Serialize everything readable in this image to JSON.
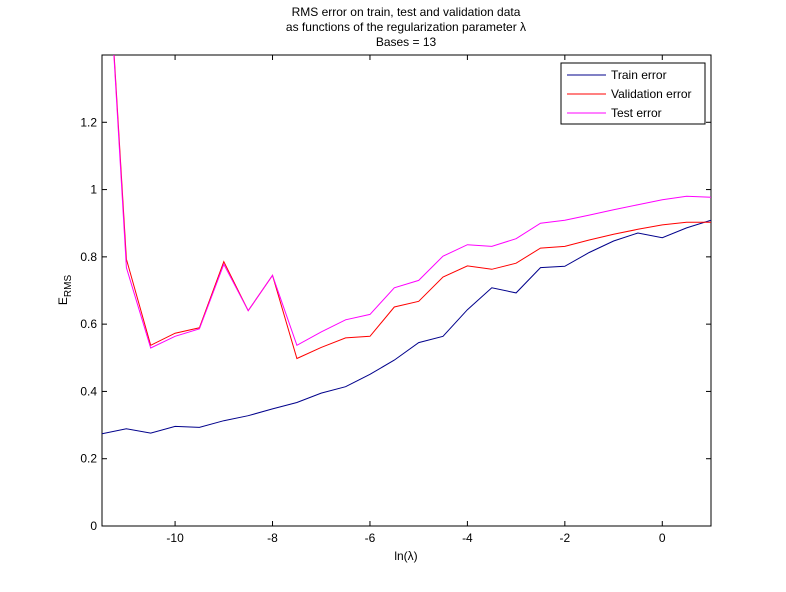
{
  "chart_data": {
    "type": "line",
    "title_lines": [
      "RMS error on train, test and validation data",
      "as functions of the regularization parameter λ",
      "Bases = 13"
    ],
    "xlabel": "ln(λ)",
    "ylabel": "E",
    "ylabel_sub": "RMS",
    "xlim": [
      -11.5,
      1
    ],
    "ylim": [
      0,
      1.4
    ],
    "xticks": [
      -10,
      -8,
      -6,
      -4,
      -2,
      0
    ],
    "yticks": [
      0,
      0.2,
      0.4,
      0.6,
      0.8,
      1,
      1.2
    ],
    "ytick_labels": [
      "0",
      "0.2",
      "0.4",
      "0.6",
      "0.8",
      "1",
      "1.2"
    ],
    "grid": false,
    "legend_position": "top-right",
    "x": [
      -11.5,
      -11,
      -10.5,
      -10,
      -9.5,
      -9,
      -8.5,
      -8,
      -7.5,
      -7,
      -6.5,
      -6,
      -5.5,
      -5,
      -4.5,
      -4,
      -3.5,
      -3,
      -2.5,
      -2,
      -1.5,
      -1,
      -0.5,
      0,
      0.5,
      1
    ],
    "series": [
      {
        "name": "Train error",
        "color": "#00008b",
        "values": [
          0.274,
          0.289,
          0.276,
          0.296,
          0.293,
          0.313,
          0.328,
          0.348,
          0.367,
          0.395,
          0.414,
          0.451,
          0.493,
          0.545,
          0.564,
          0.643,
          0.708,
          0.693,
          0.768,
          0.772,
          0.813,
          0.847,
          0.871,
          0.857,
          0.886,
          0.909
        ]
      },
      {
        "name": "Validation error",
        "color": "#ff0000",
        "values": [
          2.0,
          0.793,
          0.537,
          0.573,
          0.589,
          0.786,
          0.64,
          0.745,
          0.498,
          0.531,
          0.559,
          0.564,
          0.651,
          0.668,
          0.74,
          0.773,
          0.763,
          0.781,
          0.826,
          0.831,
          0.85,
          0.867,
          0.882,
          0.895,
          0.903,
          0.903
        ]
      },
      {
        "name": "Test error",
        "color": "#ff00ff",
        "values": [
          2.0,
          0.768,
          0.529,
          0.564,
          0.586,
          0.778,
          0.64,
          0.745,
          0.537,
          0.577,
          0.613,
          0.629,
          0.708,
          0.73,
          0.802,
          0.836,
          0.831,
          0.854,
          0.9,
          0.909,
          0.924,
          0.94,
          0.955,
          0.97,
          0.98,
          0.977
        ]
      }
    ]
  }
}
